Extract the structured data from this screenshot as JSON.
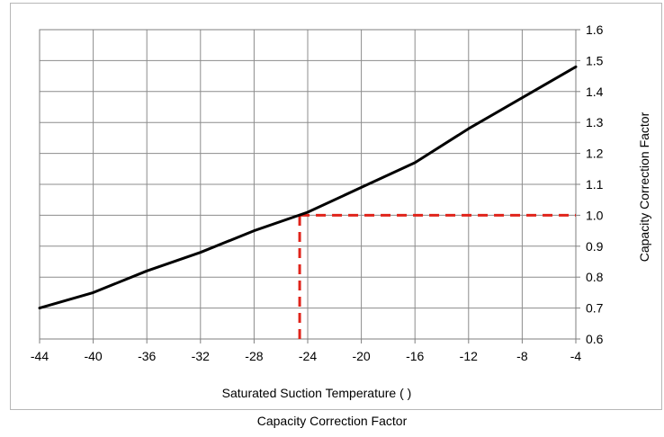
{
  "caption": "Capacity Correction Factor",
  "chart_data": {
    "type": "line",
    "xlabel": "Saturated Suction Temperature (     )",
    "ylabel": "Capacity Correction Factor",
    "xlim": [
      -44,
      -4
    ],
    "ylim": [
      0.6,
      1.6
    ],
    "x_ticks": [
      "-44",
      "-40",
      "-36",
      "-32",
      "-28",
      "-24",
      "-20",
      "-16",
      "-12",
      "-8",
      "-4"
    ],
    "y_ticks": [
      "0.6",
      "0.7",
      "0.8",
      "0.9",
      "1.0",
      "1.1",
      "1.2",
      "1.3",
      "1.4",
      "1.5",
      "1.6"
    ],
    "y_axis_position": "right",
    "grid": true,
    "series": [
      {
        "color": "#000000",
        "x": [
          -44,
          -40,
          -36,
          -32,
          -28,
          -24,
          -20,
          -16,
          -12,
          -8,
          -4
        ],
        "y": [
          0.7,
          0.75,
          0.82,
          0.88,
          0.95,
          1.01,
          1.09,
          1.17,
          1.28,
          1.38,
          1.48
        ]
      }
    ],
    "reference_lines": {
      "color": "#e0241b",
      "style": "dashed",
      "x": -24.6,
      "y": 1.0
    }
  }
}
